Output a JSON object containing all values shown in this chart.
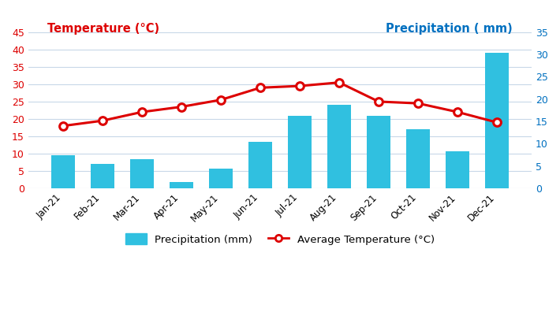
{
  "months": [
    "Jan-21",
    "Feb-21",
    "Mar-21",
    "Apr-21",
    "May-21",
    "Jun-21",
    "Jul-21",
    "Aug-21",
    "Sep-21",
    "Oct-21",
    "Nov-21",
    "Dec-21"
  ],
  "precipitation": [
    9.5,
    7.0,
    8.5,
    1.8,
    5.8,
    13.5,
    21.0,
    24.0,
    21.0,
    17.0,
    10.7,
    39.0
  ],
  "temperature": [
    18.0,
    19.5,
    22.0,
    23.5,
    25.5,
    29.0,
    29.5,
    30.5,
    25.0,
    24.5,
    22.0,
    19.0
  ],
  "bar_color": "#30C0E0",
  "line_color": "#DD0000",
  "left_axis_color": "#DD0000",
  "right_axis_color": "#0070C0",
  "left_ylabel": "Temperature (°C)",
  "right_ylabel": "Precipitation ( mm)",
  "left_ylim": [
    0,
    45
  ],
  "right_ylim": [
    0,
    35
  ],
  "left_yticks": [
    0,
    5,
    10,
    15,
    20,
    25,
    30,
    35,
    40,
    45
  ],
  "right_yticks": [
    0,
    5,
    10,
    15,
    20,
    25,
    30,
    35
  ],
  "legend_bar_label": "Precipitation (mm)",
  "legend_line_label": "Average Temperature (°C)",
  "bg_color": "#FFFFFF",
  "grid_color": "#C8D8E8",
  "left_title_color": "#DD0000",
  "right_title_color": "#0070C0"
}
